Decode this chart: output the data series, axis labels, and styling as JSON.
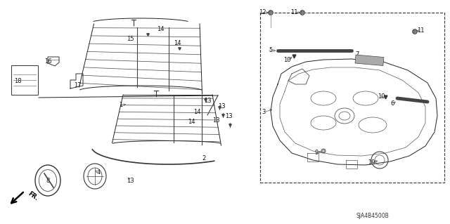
{
  "bg_color": "#ffffff",
  "diagram_code": "SJA4B4500B",
  "fig_width": 6.4,
  "fig_height": 3.19,
  "dpi": 100,
  "text_color": "#111111",
  "label_fontsize": 6.0
}
